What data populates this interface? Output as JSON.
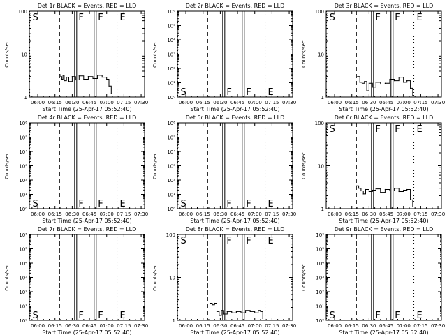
{
  "figure": {
    "background": "#ffffff",
    "line_color": "#000000"
  },
  "chart_data": [
    {
      "type": "line",
      "title": "Det 1r BLACK = Events, RED = LLD",
      "xlabel": "Start Time (25-Apr-17 05:52:40)",
      "ylabel": "Counts/sec",
      "x_ticks": [
        "06:00",
        "06:15",
        "06:30",
        "06:45",
        "07:00",
        "07:15",
        "07:30"
      ],
      "xlim": [
        "05:52:40",
        "07:33:00"
      ],
      "yscale": "log",
      "ylim": [
        1,
        100
      ],
      "y_ticks": [
        "1",
        "10",
        "100"
      ],
      "markers": [
        {
          "label": "S",
          "time": "05:53:00",
          "style": "dotted",
          "label_pos": "top"
        },
        {
          "label": "",
          "time": "06:19:00",
          "style": "dashed"
        },
        {
          "label": "F",
          "time": "06:33:00",
          "style": "double",
          "label_pos": "top"
        },
        {
          "label": "F",
          "time": "06:50:00",
          "style": "double",
          "label_pos": "top"
        },
        {
          "label": "E",
          "time": "07:09:00",
          "style": "dotted",
          "label_pos": "top"
        }
      ],
      "series": [
        {
          "x": [
            "06:19",
            "06:20",
            "06:21",
            "06:22",
            "06:23",
            "06:25",
            "06:27",
            "06:30",
            "06:33",
            "06:36",
            "06:40",
            "06:44",
            "06:48",
            "06:52",
            "06:56",
            "07:00",
            "07:02",
            "07:04"
          ],
          "y": [
            3.3,
            3.0,
            2.6,
            3.2,
            2.4,
            2.9,
            2.3,
            3.0,
            2.5,
            3.1,
            2.6,
            3.0,
            2.7,
            3.2,
            2.9,
            2.6,
            1.8,
            1.2
          ]
        }
      ]
    },
    {
      "type": "line",
      "title": "Det 2r BLACK = Events, RED = LLD",
      "xlabel": "Start Time (25-Apr-17 05:52:40)",
      "ylabel": "Counts/sec",
      "x_ticks": [
        "06:00",
        "06:15",
        "06:30",
        "06:45",
        "07:00",
        "07:15",
        "07:30"
      ],
      "xlim": [
        "05:52:40",
        "07:33:00"
      ],
      "yscale": "log",
      "ylim": [
        1,
        1000000
      ],
      "y_ticks": [
        "10⁰",
        "10¹",
        "10²",
        "10³",
        "10⁴",
        "10⁵",
        "10⁶"
      ],
      "markers": [
        {
          "label": "S",
          "time": "05:53:00",
          "style": "dotted",
          "label_pos": "bottom"
        },
        {
          "label": "",
          "time": "06:19:00",
          "style": "dashed"
        },
        {
          "label": "F",
          "time": "06:33:00",
          "style": "double",
          "label_pos": "bottom"
        },
        {
          "label": "F",
          "time": "06:50:00",
          "style": "double",
          "label_pos": "bottom"
        },
        {
          "label": "E",
          "time": "07:09:00",
          "style": "dotted",
          "label_pos": "bottom"
        }
      ],
      "series": []
    },
    {
      "type": "line",
      "title": "Det 3r BLACK = Events, RED = LLD",
      "xlabel": "Start Time (25-Apr-17 05:52:40)",
      "ylabel": "Counts/sec",
      "x_ticks": [
        "06:00",
        "06:15",
        "06:30",
        "06:45",
        "07:00",
        "07:15",
        "07:30"
      ],
      "xlim": [
        "05:52:40",
        "07:33:00"
      ],
      "yscale": "log",
      "ylim": [
        1,
        100
      ],
      "y_ticks": [
        "1",
        "10",
        "100"
      ],
      "markers": [
        {
          "label": "S",
          "time": "05:53:00",
          "style": "dotted",
          "label_pos": "top"
        },
        {
          "label": "",
          "time": "06:19:00",
          "style": "dashed"
        },
        {
          "label": "F",
          "time": "06:33:00",
          "style": "double",
          "label_pos": "top"
        },
        {
          "label": "F",
          "time": "06:50:00",
          "style": "double",
          "label_pos": "top"
        },
        {
          "label": "E",
          "time": "07:09:00",
          "style": "dotted",
          "label_pos": "top"
        }
      ],
      "series": [
        {
          "x": [
            "06:20",
            "06:22",
            "06:24",
            "06:26",
            "06:28",
            "06:30",
            "06:33",
            "06:36",
            "06:40",
            "06:44",
            "06:48",
            "06:52",
            "06:56",
            "07:00",
            "07:03",
            "07:06",
            "07:08"
          ],
          "y": [
            3.0,
            2.2,
            2.1,
            2.3,
            1.4,
            2.1,
            1.7,
            2.2,
            2.0,
            2.1,
            2.6,
            2.4,
            2.9,
            2.2,
            2.4,
            1.6,
            1.1
          ]
        }
      ]
    },
    {
      "type": "line",
      "title": "Det 4r BLACK = Events, RED = LLD",
      "xlabel": "Start Time (25-Apr-17 05:52:40)",
      "ylabel": "Counts/sec",
      "x_ticks": [
        "06:00",
        "06:15",
        "06:30",
        "06:45",
        "07:00",
        "07:15",
        "07:30"
      ],
      "xlim": [
        "05:52:40",
        "07:33:00"
      ],
      "yscale": "log",
      "ylim": [
        1,
        1000000
      ],
      "y_ticks": [
        "10⁰",
        "10¹",
        "10²",
        "10³",
        "10⁴",
        "10⁵",
        "10⁶"
      ],
      "markers": [
        {
          "label": "S",
          "time": "05:53:00",
          "style": "dotted",
          "label_pos": "bottom"
        },
        {
          "label": "",
          "time": "06:19:00",
          "style": "dashed"
        },
        {
          "label": "F",
          "time": "06:33:00",
          "style": "double",
          "label_pos": "bottom"
        },
        {
          "label": "F",
          "time": "06:50:00",
          "style": "double",
          "label_pos": "bottom"
        },
        {
          "label": "E",
          "time": "07:09:00",
          "style": "dotted",
          "label_pos": "bottom"
        }
      ],
      "series": []
    },
    {
      "type": "line",
      "title": "Det 5r BLACK = Events, RED = LLD",
      "xlabel": "Start Time (25-Apr-17 05:52:40)",
      "ylabel": "Counts/sec",
      "x_ticks": [
        "06:00",
        "06:15",
        "06:30",
        "06:45",
        "07:00",
        "07:15",
        "07:30"
      ],
      "xlim": [
        "05:52:40",
        "07:33:00"
      ],
      "yscale": "log",
      "ylim": [
        1,
        1000000
      ],
      "y_ticks": [
        "10⁰",
        "10¹",
        "10²",
        "10³",
        "10⁴",
        "10⁵",
        "10⁶"
      ],
      "markers": [
        {
          "label": "S",
          "time": "05:53:00",
          "style": "dotted",
          "label_pos": "bottom"
        },
        {
          "label": "",
          "time": "06:19:00",
          "style": "dashed"
        },
        {
          "label": "F",
          "time": "06:33:00",
          "style": "double",
          "label_pos": "bottom"
        },
        {
          "label": "F",
          "time": "06:50:00",
          "style": "double",
          "label_pos": "bottom"
        },
        {
          "label": "E",
          "time": "07:09:00",
          "style": "dotted",
          "label_pos": "bottom"
        }
      ],
      "series": []
    },
    {
      "type": "line",
      "title": "Det 6r BLACK = Events, RED = LLD",
      "xlabel": "Start Time (25-Apr-17 05:52:40)",
      "ylabel": "Counts/sec",
      "x_ticks": [
        "06:00",
        "06:15",
        "06:30",
        "06:45",
        "07:00",
        "07:15",
        "07:30"
      ],
      "xlim": [
        "05:52:40",
        "07:33:00"
      ],
      "yscale": "log",
      "ylim": [
        1,
        100
      ],
      "y_ticks": [
        "1",
        "10",
        "100"
      ],
      "markers": [
        {
          "label": "S",
          "time": "05:53:00",
          "style": "dotted",
          "label_pos": "top"
        },
        {
          "label": "",
          "time": "06:19:00",
          "style": "dashed"
        },
        {
          "label": "F",
          "time": "06:33:00",
          "style": "double",
          "label_pos": "top"
        },
        {
          "label": "F",
          "time": "06:50:00",
          "style": "double",
          "label_pos": "top"
        },
        {
          "label": "E",
          "time": "07:09:00",
          "style": "dotted",
          "label_pos": "top"
        }
      ],
      "series": [
        {
          "x": [
            "06:19",
            "06:21",
            "06:23",
            "06:25",
            "06:27",
            "06:30",
            "06:33",
            "06:36",
            "06:40",
            "06:44",
            "06:48",
            "06:52",
            "06:56",
            "07:00",
            "07:03",
            "07:06",
            "07:08"
          ],
          "y": [
            3.4,
            3.0,
            2.6,
            2.2,
            2.8,
            2.5,
            2.7,
            2.9,
            2.4,
            2.8,
            2.6,
            3.0,
            2.5,
            2.7,
            2.8,
            1.6,
            1.1
          ]
        }
      ]
    },
    {
      "type": "line",
      "title": "Det 7r BLACK = Events, RED = LLD",
      "xlabel": "Start Time (25-Apr-17 05:52:40)",
      "ylabel": "Counts/sec",
      "x_ticks": [
        "06:00",
        "06:15",
        "06:30",
        "06:45",
        "07:00",
        "07:15",
        "07:30"
      ],
      "xlim": [
        "05:52:40",
        "07:33:00"
      ],
      "yscale": "log",
      "ylim": [
        1,
        1000000
      ],
      "y_ticks": [
        "10⁰",
        "10¹",
        "10²",
        "10³",
        "10⁴",
        "10⁵",
        "10⁶"
      ],
      "markers": [
        {
          "label": "S",
          "time": "05:53:00",
          "style": "dotted",
          "label_pos": "bottom"
        },
        {
          "label": "",
          "time": "06:19:00",
          "style": "dashed"
        },
        {
          "label": "F",
          "time": "06:33:00",
          "style": "double",
          "label_pos": "bottom"
        },
        {
          "label": "F",
          "time": "06:50:00",
          "style": "double",
          "label_pos": "bottom"
        },
        {
          "label": "E",
          "time": "07:09:00",
          "style": "dotted",
          "label_pos": "bottom"
        }
      ],
      "series": []
    },
    {
      "type": "line",
      "title": "Det 8r BLACK = Events, RED = LLD",
      "xlabel": "Start Time (25-Apr-17 05:52:40)",
      "ylabel": "Counts/sec",
      "x_ticks": [
        "06:00",
        "06:15",
        "06:30",
        "06:45",
        "07:00",
        "07:15",
        "07:30"
      ],
      "xlim": [
        "05:52:40",
        "07:33:00"
      ],
      "yscale": "log",
      "ylim": [
        1,
        100
      ],
      "y_ticks": [
        "1",
        "10",
        "100"
      ],
      "markers": [
        {
          "label": "S",
          "time": "05:53:00",
          "style": "dotted",
          "label_pos": "top"
        },
        {
          "label": "",
          "time": "06:19:00",
          "style": "dashed"
        },
        {
          "label": "F",
          "time": "06:33:00",
          "style": "double",
          "label_pos": "top"
        },
        {
          "label": "F",
          "time": "06:50:00",
          "style": "double",
          "label_pos": "top"
        },
        {
          "label": "E",
          "time": "07:09:00",
          "style": "dotted",
          "label_pos": "top"
        }
      ],
      "series": [
        {
          "x": [
            "06:21",
            "06:23",
            "06:25",
            "06:27",
            "06:29",
            "06:31",
            "06:33",
            "06:36",
            "06:40",
            "06:44",
            "06:48",
            "06:52",
            "06:56",
            "07:00",
            "07:03",
            "07:05",
            "07:07"
          ],
          "y": [
            2.5,
            2.3,
            2.5,
            1.6,
            1.3,
            1.7,
            1.4,
            1.6,
            1.5,
            1.6,
            1.5,
            1.7,
            1.6,
            1.5,
            1.7,
            1.6,
            1.1
          ]
        }
      ]
    },
    {
      "type": "line",
      "title": "Det 9r BLACK = Events, RED = LLD",
      "xlabel": "Start Time (25-Apr-17 05:52:40)",
      "ylabel": "Counts/sec",
      "x_ticks": [
        "06:00",
        "06:15",
        "06:30",
        "06:45",
        "07:00",
        "07:15",
        "07:30"
      ],
      "xlim": [
        "05:52:40",
        "07:33:00"
      ],
      "yscale": "log",
      "ylim": [
        1,
        1000000
      ],
      "y_ticks": [
        "10⁰",
        "10¹",
        "10²",
        "10³",
        "10⁴",
        "10⁵",
        "10⁶"
      ],
      "markers": [
        {
          "label": "S",
          "time": "05:53:00",
          "style": "dotted",
          "label_pos": "bottom"
        },
        {
          "label": "",
          "time": "06:19:00",
          "style": "dashed"
        },
        {
          "label": "F",
          "time": "06:33:00",
          "style": "double",
          "label_pos": "bottom"
        },
        {
          "label": "F",
          "time": "06:50:00",
          "style": "double",
          "label_pos": "bottom"
        },
        {
          "label": "E",
          "time": "07:09:00",
          "style": "dotted",
          "label_pos": "bottom"
        }
      ],
      "series": []
    }
  ]
}
